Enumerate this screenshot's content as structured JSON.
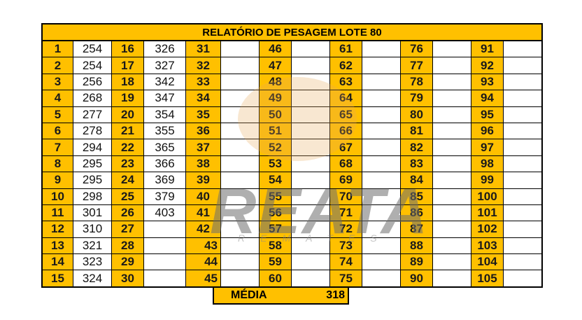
{
  "title": "RELATÓRIO DE PESAGEM LOTE  80",
  "numbers": [
    "1",
    "2",
    "3",
    "4",
    "5",
    "6",
    "7",
    "8",
    "9",
    "10",
    "11",
    "12",
    "13",
    "14",
    "15",
    "16",
    "17",
    "18",
    "19",
    "20",
    "21",
    "22",
    "23",
    "24",
    "25",
    "26",
    "27",
    "28",
    "29",
    "30",
    "31",
    "32",
    "33",
    "34",
    "35",
    "36",
    "37",
    "38",
    "39",
    "40",
    "41",
    "42",
    "43",
    "44",
    "45",
    "46",
    "47",
    "48",
    "49",
    "50",
    "51",
    "52",
    "53",
    "54",
    "55",
    "56",
    "57",
    "58",
    "59",
    "60",
    "61",
    "62",
    "63",
    "64",
    "65",
    "66",
    "67",
    "68",
    "69",
    "70",
    "71",
    "72",
    "73",
    "74",
    "75",
    "76",
    "77",
    "78",
    "79",
    "80",
    "81",
    "82",
    "83",
    "84",
    "85",
    "86",
    "87",
    "88",
    "89",
    "90",
    "91",
    "92",
    "93",
    "94",
    "95",
    "96",
    "97",
    "98",
    "99",
    "100",
    "101",
    "102",
    "103",
    "104",
    "105"
  ],
  "weights": [
    "254",
    "254",
    "256",
    "268",
    "277",
    "278",
    "294",
    "295",
    "295",
    "298",
    "301",
    "310",
    "321",
    "323",
    "324",
    "326",
    "327",
    "342",
    "347",
    "354",
    "355",
    "365",
    "366",
    "369",
    "379",
    "403"
  ],
  "media": {
    "label": "MÉDIA",
    "value": "318"
  },
  "watermark": {
    "brand": "REATA",
    "sub": "REMATES"
  },
  "colors": {
    "header": "#FFC000"
  }
}
